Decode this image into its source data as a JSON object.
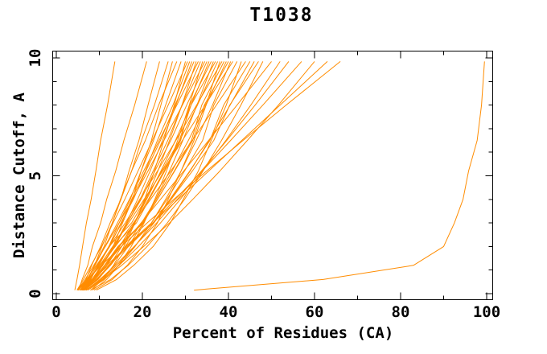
{
  "chart_data": {
    "type": "line",
    "title": "T1038",
    "xlabel": "Percent of Residues (CA)",
    "ylabel": "Distance Cutoff, A",
    "xlim": [
      0,
      100
    ],
    "ylim": [
      0,
      10
    ],
    "grid": false,
    "legend": "none",
    "x_major_ticks": [
      0,
      20,
      40,
      60,
      80,
      100
    ],
    "x_minor_ticks": [
      10,
      30,
      50,
      70,
      90
    ],
    "y_major_ticks": [
      0,
      5,
      10
    ],
    "y_minor_ticks": [
      1,
      2,
      3,
      4,
      6,
      7,
      8,
      9
    ],
    "line_color": "#ff8c00",
    "axis_color": "#000000",
    "background_color": "#ffffff",
    "cutoffs": [
      0.15,
      0.6,
      1.2,
      2,
      3,
      4,
      5.2,
      6.5,
      8,
      9.85
    ],
    "series": [
      [
        4.3,
        4.8,
        5.4,
        6.1,
        7.0,
        8.1,
        9.2,
        10.3,
        11.9,
        13.6
      ],
      [
        5.2,
        6.0,
        7.3,
        8.4,
        10.3,
        11.7,
        13.8,
        15.7,
        18.2,
        21.0
      ],
      [
        5.5,
        7.4,
        8.9,
        11.1,
        13.0,
        15.0,
        16.9,
        19.2,
        21.3,
        24.0
      ],
      [
        6.0,
        7.2,
        8.9,
        10.6,
        13.0,
        14.9,
        17.5,
        19.8,
        22.8,
        26.0
      ],
      [
        6.1,
        8.7,
        10.7,
        13.2,
        15.4,
        17.7,
        19.7,
        22.1,
        24.3,
        27.0
      ],
      [
        5.6,
        6.9,
        8.2,
        10.3,
        12.5,
        15.0,
        17.5,
        20.7,
        23.8,
        28.0
      ],
      [
        5.8,
        7.9,
        9.7,
        12.2,
        14.6,
        17.2,
        19.7,
        22.6,
        25.4,
        29.0
      ],
      [
        8.0,
        10.8,
        13.3,
        15.7,
        18.3,
        20.5,
        22.8,
        25.0,
        27.4,
        30.0
      ],
      [
        4.8,
        6.3,
        8.1,
        10.5,
        13.2,
        15.9,
        19.0,
        22.3,
        26.0,
        30.5
      ],
      [
        5.9,
        7.7,
        9.9,
        12.2,
        15.2,
        17.5,
        20.7,
        23.5,
        27.1,
        31.0
      ],
      [
        6.0,
        8.4,
        10.8,
        13.4,
        16.3,
        18.9,
        21.8,
        24.7,
        27.8,
        31.5
      ],
      [
        6.2,
        8.0,
        9.7,
        12.4,
        15.0,
        17.9,
        20.8,
        24.2,
        27.6,
        32.0
      ],
      [
        6.6,
        9.7,
        12.4,
        15.2,
        18.2,
        20.8,
        23.6,
        26.3,
        29.2,
        32.5
      ],
      [
        5.7,
        7.2,
        9.0,
        11.3,
        14.2,
        17.0,
        20.3,
        23.9,
        28.0,
        33.0
      ],
      [
        6.0,
        8.5,
        10.6,
        13.6,
        16.5,
        19.5,
        22.5,
        25.9,
        29.2,
        33.5
      ],
      [
        8.4,
        11.7,
        14.5,
        17.4,
        20.4,
        22.9,
        25.6,
        28.2,
        30.9,
        34.0
      ],
      [
        4.9,
        6.7,
        8.7,
        11.4,
        14.6,
        17.7,
        21.3,
        25.0,
        29.3,
        34.5
      ],
      [
        6.1,
        8.3,
        10.5,
        13.5,
        16.5,
        19.7,
        22.9,
        26.6,
        30.3,
        35.0
      ],
      [
        6.2,
        9.0,
        11.7,
        14.7,
        18.1,
        21.0,
        24.3,
        27.7,
        31.3,
        35.5
      ],
      [
        6.3,
        8.3,
        10.5,
        13.3,
        18.6,
        21.6,
        25.2,
        28.9,
        31.0,
        36.0
      ],
      [
        7.0,
        10.4,
        13.5,
        16.7,
        20.2,
        23.1,
        26.3,
        29.4,
        32.7,
        36.5
      ],
      [
        5.8,
        7.5,
        9.5,
        12.2,
        17.5,
        20.7,
        24.5,
        28.6,
        31.3,
        37.0
      ],
      [
        6.2,
        8.9,
        11.6,
        14.7,
        18.2,
        21.4,
        25.0,
        28.7,
        32.8,
        37.5
      ],
      [
        8.8,
        13.0,
        16.5,
        20.0,
        23.5,
        26.0,
        29.0,
        32.0,
        34.8,
        38.0
      ],
      [
        5.0,
        7.0,
        9.3,
        12.4,
        16.0,
        19.4,
        23.5,
        27.8,
        32.6,
        38.5
      ],
      [
        6.2,
        8.6,
        11.3,
        14.5,
        20.2,
        23.5,
        27.4,
        31.4,
        33.8,
        39.0
      ],
      [
        6.4,
        9.5,
        12.6,
        16.0,
        19.8,
        23.2,
        26.9,
        30.7,
        34.8,
        39.5
      ],
      [
        6.4,
        8.7,
        11.2,
        14.3,
        20.0,
        23.5,
        27.5,
        31.7,
        34.4,
        40.0
      ],
      [
        7.3,
        11.2,
        14.6,
        18.3,
        22.1,
        25.4,
        29.0,
        32.5,
        36.3,
        40.5
      ],
      [
        5.9,
        7.7,
        10.1,
        13.1,
        16.8,
        20.4,
        24.7,
        29.3,
        34.6,
        41.0
      ],
      [
        6.4,
        9.4,
        12.5,
        16.1,
        22.1,
        25.7,
        29.8,
        34.0,
        36.6,
        42.0
      ],
      [
        9.3,
        14.0,
        18.0,
        22.5,
        26.5,
        29.5,
        33.0,
        36.0,
        39.5,
        43.0
      ],
      [
        5.1,
        7.4,
        10.2,
        13.7,
        17.9,
        21.9,
        26.6,
        31.6,
        37.2,
        44.0
      ],
      [
        6.4,
        9.3,
        12.4,
        16.2,
        22.5,
        26.4,
        31.0,
        35.7,
        38.9,
        45.0
      ],
      [
        6.8,
        10.4,
        14.1,
        18.2,
        22.7,
        26.6,
        31.1,
        35.5,
        40.4,
        46.0
      ],
      [
        6.6,
        9.3,
        12.3,
        16.1,
        22.6,
        26.7,
        31.6,
        36.6,
        40.3,
        47.0
      ],
      [
        7.9,
        12.6,
        16.7,
        21.1,
        25.8,
        29.8,
        34.1,
        38.4,
        42.9,
        48.0
      ],
      [
        6.1,
        8.4,
        11.3,
        15.1,
        19.7,
        24.2,
        29.6,
        35.4,
        42.0,
        50.0
      ],
      [
        6.9,
        10.7,
        14.6,
        19.1,
        24.2,
        28.8,
        34.0,
        39.4,
        45.2,
        52.0
      ],
      [
        7.0,
        10.1,
        13.7,
        18.1,
        23.3,
        28.1,
        33.7,
        39.6,
        46.2,
        54.0
      ],
      [
        5.4,
        8.5,
        12.1,
        16.8,
        22.4,
        27.6,
        33.9,
        40.5,
        48.0,
        57.0
      ],
      [
        6.9,
        10.9,
        15.2,
        20.3,
        26.3,
        31.7,
        38.0,
        44.4,
        51.6,
        60.0
      ],
      [
        5.5,
        8.2,
        11.7,
        16.5,
        22.4,
        28.3,
        35.4,
        43.1,
        52.0,
        63.0
      ],
      [
        5.0,
        7.2,
        10.5,
        15.1,
        21.1,
        27.3,
        34.9,
        43.4,
        53.4,
        66.0
      ],
      [
        32.0,
        62.0,
        83.0,
        90.0,
        92.5,
        94.5,
        95.8,
        97.8,
        98.8,
        99.5
      ]
    ]
  }
}
